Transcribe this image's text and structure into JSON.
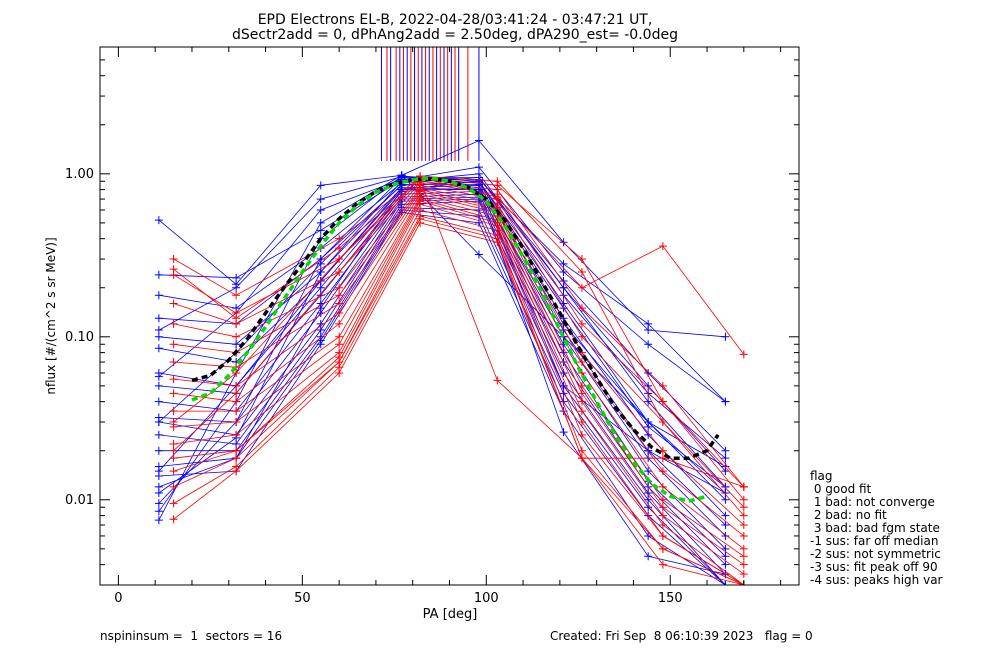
{
  "chart_data": {
    "type": "line",
    "title_line1": "EPD Electrons EL-B, 2022-04-28/03:41:24 - 03:47:21 UT,",
    "title_line2": "dSectr2add = 0, dPhAng2add = 2.50deg, dPA290_est=  -0.0deg",
    "xlabel": "PA [deg]",
    "ylabel": "nflux [#/(cm^2 s sr MeV)]",
    "xlim": [
      -5,
      185
    ],
    "ylim": [
      0.003,
      6.0
    ],
    "yscale": "log",
    "x_ticks": [
      "0",
      "50",
      "100",
      "150"
    ],
    "y_ticks": [
      "0.01",
      "0.10",
      "1.00"
    ],
    "colors": {
      "red": "#ff0000",
      "blue": "#0000ff",
      "green": "#00dd00",
      "black": "#000000"
    },
    "series": [
      {
        "color": "blue",
        "x": [
          11,
          32,
          55,
          77,
          98,
          121,
          144,
          165
        ],
        "y": [
          0.52,
          0.21,
          0.85,
          0.98,
          1.6,
          0.38,
          0.11,
          0.1
        ]
      },
      {
        "color": "blue",
        "x": [
          11,
          32,
          55,
          77,
          98,
          121,
          144,
          165
        ],
        "y": [
          0.24,
          0.23,
          0.45,
          0.92,
          1.1,
          0.25,
          0.09,
          0.04
        ]
      },
      {
        "color": "blue",
        "x": [
          11,
          32,
          55,
          77,
          98,
          121,
          144,
          165
        ],
        "y": [
          0.18,
          0.15,
          0.35,
          0.88,
          0.95,
          0.2,
          0.04,
          0.012
        ]
      },
      {
        "color": "blue",
        "x": [
          11,
          32,
          55,
          77,
          98,
          121,
          144,
          165
        ],
        "y": [
          0.13,
          0.12,
          0.3,
          0.85,
          0.9,
          0.16,
          0.03,
          0.01
        ]
      },
      {
        "color": "blue",
        "x": [
          11,
          32,
          55,
          77,
          98,
          121,
          144,
          165
        ],
        "y": [
          0.1,
          0.09,
          0.25,
          0.82,
          0.85,
          0.13,
          0.025,
          0.008
        ]
      },
      {
        "color": "blue",
        "x": [
          11,
          32,
          55,
          77,
          98,
          121,
          144,
          165
        ],
        "y": [
          0.085,
          0.07,
          0.22,
          0.8,
          0.8,
          0.11,
          0.02,
          0.007
        ]
      },
      {
        "color": "blue",
        "x": [
          11,
          32,
          55,
          77,
          98,
          121,
          144,
          165
        ],
        "y": [
          0.06,
          0.05,
          0.2,
          0.78,
          0.82,
          0.1,
          0.018,
          0.006
        ]
      },
      {
        "color": "blue",
        "x": [
          11,
          32,
          55,
          77,
          98,
          121,
          144,
          165
        ],
        "y": [
          0.05,
          0.045,
          0.18,
          0.75,
          0.78,
          0.09,
          0.015,
          0.005
        ]
      },
      {
        "color": "blue",
        "x": [
          11,
          32,
          55,
          77,
          98,
          121,
          144,
          165
        ],
        "y": [
          0.04,
          0.035,
          0.16,
          0.72,
          0.75,
          0.08,
          0.013,
          0.0045
        ]
      },
      {
        "color": "blue",
        "x": [
          11,
          32,
          55,
          77,
          98,
          121,
          144,
          165
        ],
        "y": [
          0.032,
          0.03,
          0.14,
          0.7,
          0.72,
          0.07,
          0.012,
          0.004
        ]
      },
      {
        "color": "blue",
        "x": [
          11,
          32,
          55,
          77,
          98,
          121,
          144,
          165
        ],
        "y": [
          0.03,
          0.025,
          0.12,
          0.68,
          0.7,
          0.06,
          0.011,
          0.0035
        ]
      },
      {
        "color": "blue",
        "x": [
          11,
          32,
          55,
          77,
          98,
          121,
          144,
          165
        ],
        "y": [
          0.025,
          0.022,
          0.11,
          0.65,
          0.68,
          0.05,
          0.01,
          0.003
        ]
      },
      {
        "color": "blue",
        "x": [
          11,
          32,
          55,
          77,
          98,
          121,
          144,
          165
        ],
        "y": [
          0.02,
          0.02,
          0.1,
          0.62,
          0.6,
          0.045,
          0.009,
          0.003
        ]
      },
      {
        "color": "blue",
        "x": [
          11,
          32,
          55,
          77,
          98,
          121,
          144,
          165
        ],
        "y": [
          0.016,
          0.018,
          0.095,
          0.6,
          0.55,
          0.04,
          0.008,
          0.003
        ]
      },
      {
        "color": "blue",
        "x": [
          11,
          32,
          55,
          77,
          98,
          121,
          144,
          165
        ],
        "y": [
          0.014,
          0.015,
          0.09,
          0.58,
          0.5,
          0.035,
          0.006,
          0.003
        ]
      },
      {
        "color": "blue",
        "x": [
          11,
          32,
          55,
          77,
          98,
          121,
          144,
          165
        ],
        "y": [
          0.012,
          0.018,
          0.15,
          0.8,
          0.9,
          0.12,
          0.03,
          0.011
        ]
      },
      {
        "color": "blue",
        "x": [
          11,
          32,
          55,
          77,
          98,
          121,
          144,
          165
        ],
        "y": [
          0.011,
          0.024,
          0.25,
          0.9,
          1.0,
          0.2,
          0.05,
          0.015
        ]
      },
      {
        "color": "blue",
        "x": [
          11,
          32,
          55,
          77,
          98,
          121,
          144,
          165
        ],
        "y": [
          0.0095,
          0.03,
          0.3,
          0.95,
          0.95,
          0.22,
          0.06,
          0.02
        ]
      },
      {
        "color": "blue",
        "x": [
          11,
          32,
          55,
          77,
          98,
          121,
          144,
          165
        ],
        "y": [
          0.0085,
          0.04,
          0.4,
          0.97,
          0.9,
          0.18,
          0.045,
          0.018
        ]
      },
      {
        "color": "blue",
        "x": [
          11,
          32,
          55,
          77,
          98,
          121,
          144,
          165
        ],
        "y": [
          0.0075,
          0.06,
          0.5,
          0.98,
          0.32,
          0.1,
          0.03,
          0.016
        ]
      },
      {
        "color": "blue",
        "x": [
          11,
          32,
          55,
          77,
          98,
          121,
          144,
          165
        ],
        "y": [
          0.057,
          0.14,
          0.6,
          0.93,
          0.88,
          0.15,
          0.028,
          0.012
        ]
      },
      {
        "color": "blue",
        "x": [
          11,
          32,
          55,
          77,
          98,
          121,
          144,
          165
        ],
        "y": [
          0.11,
          0.2,
          0.7,
          0.96,
          0.92,
          0.28,
          0.12,
          0.04
        ]
      },
      {
        "color": "blue",
        "x": [
          11,
          32,
          55,
          77,
          98,
          121,
          144,
          165
        ],
        "y": [
          0.03,
          0.08,
          0.28,
          0.86,
          0.86,
          0.05,
          0.02,
          0.011
        ]
      },
      {
        "color": "blue",
        "x": [
          11,
          32,
          55,
          77,
          98,
          121,
          144,
          165
        ],
        "y": [
          0.015,
          0.05,
          0.22,
          0.82,
          0.8,
          0.026,
          0.0045,
          0.0035
        ]
      },
      {
        "color": "red",
        "x": [
          15,
          32,
          60,
          82,
          103,
          126,
          148,
          170
        ],
        "y": [
          0.3,
          0.18,
          0.4,
          0.95,
          0.72,
          0.2,
          0.36,
          0.078
        ]
      },
      {
        "color": "red",
        "x": [
          15,
          32,
          60,
          82,
          103,
          126,
          148,
          170
        ],
        "y": [
          0.24,
          0.14,
          0.3,
          0.9,
          0.8,
          0.15,
          0.05,
          0.012
        ]
      },
      {
        "color": "red",
        "x": [
          15,
          32,
          60,
          82,
          103,
          126,
          148,
          170
        ],
        "y": [
          0.16,
          0.12,
          0.25,
          0.88,
          0.75,
          0.12,
          0.04,
          0.012
        ]
      },
      {
        "color": "red",
        "x": [
          15,
          32,
          60,
          82,
          103,
          126,
          148,
          170
        ],
        "y": [
          0.12,
          0.1,
          0.2,
          0.85,
          0.7,
          0.1,
          0.03,
          0.009
        ]
      },
      {
        "color": "red",
        "x": [
          15,
          32,
          60,
          82,
          103,
          126,
          148,
          170
        ],
        "y": [
          0.09,
          0.08,
          0.18,
          0.82,
          0.66,
          0.08,
          0.02,
          0.007
        ]
      },
      {
        "color": "red",
        "x": [
          15,
          32,
          60,
          82,
          103,
          126,
          148,
          170
        ],
        "y": [
          0.07,
          0.065,
          0.16,
          0.8,
          0.62,
          0.07,
          0.015,
          0.006
        ]
      },
      {
        "color": "red",
        "x": [
          15,
          32,
          60,
          82,
          103,
          126,
          148,
          170
        ],
        "y": [
          0.055,
          0.05,
          0.14,
          0.78,
          0.6,
          0.06,
          0.012,
          0.005
        ]
      },
      {
        "color": "red",
        "x": [
          15,
          32,
          60,
          82,
          103,
          126,
          148,
          170
        ],
        "y": [
          0.045,
          0.04,
          0.12,
          0.75,
          0.58,
          0.05,
          0.01,
          0.0045
        ]
      },
      {
        "color": "red",
        "x": [
          15,
          32,
          60,
          82,
          103,
          126,
          148,
          170
        ],
        "y": [
          0.035,
          0.035,
          0.1,
          0.72,
          0.55,
          0.045,
          0.009,
          0.004
        ]
      },
      {
        "color": "red",
        "x": [
          15,
          32,
          60,
          82,
          103,
          126,
          148,
          170
        ],
        "y": [
          0.028,
          0.03,
          0.09,
          0.7,
          0.52,
          0.04,
          0.008,
          0.0035
        ]
      },
      {
        "color": "red",
        "x": [
          15,
          32,
          60,
          82,
          103,
          126,
          148,
          170
        ],
        "y": [
          0.022,
          0.025,
          0.08,
          0.68,
          0.5,
          0.035,
          0.007,
          0.003
        ]
      },
      {
        "color": "red",
        "x": [
          15,
          32,
          60,
          82,
          103,
          126,
          148,
          170
        ],
        "y": [
          0.018,
          0.02,
          0.075,
          0.65,
          0.48,
          0.03,
          0.006,
          0.003
        ]
      },
      {
        "color": "red",
        "x": [
          15,
          32,
          60,
          82,
          103,
          126,
          148,
          170
        ],
        "y": [
          0.015,
          0.02,
          0.07,
          0.6,
          0.45,
          0.025,
          0.006,
          0.003
        ]
      },
      {
        "color": "red",
        "x": [
          15,
          32,
          60,
          82,
          103,
          126,
          148,
          170
        ],
        "y": [
          0.012,
          0.018,
          0.07,
          0.55,
          0.42,
          0.02,
          0.005,
          0.003
        ]
      },
      {
        "color": "red",
        "x": [
          15,
          32,
          60,
          82,
          103,
          126,
          148,
          170
        ],
        "y": [
          0.0095,
          0.016,
          0.065,
          0.53,
          0.4,
          0.018,
          0.005,
          0.003
        ]
      },
      {
        "color": "red",
        "x": [
          15,
          32,
          60,
          82,
          103,
          126,
          148,
          170
        ],
        "y": [
          0.0076,
          0.015,
          0.06,
          0.5,
          0.38,
          0.018,
          0.004,
          0.003
        ]
      },
      {
        "color": "red",
        "x": [
          15,
          32,
          60,
          82,
          103,
          126,
          148,
          170
        ],
        "y": [
          0.26,
          0.13,
          0.35,
          0.92,
          0.054,
          0.018,
          0.018,
          0.012
        ]
      },
      {
        "color": "red",
        "x": [
          15,
          32,
          60,
          82,
          103,
          126,
          148,
          170
        ],
        "y": [
          0.03,
          0.06,
          0.3,
          0.95,
          0.85,
          0.3,
          0.04,
          0.01
        ]
      },
      {
        "color": "red",
        "x": [
          15,
          32,
          60,
          82,
          103,
          126,
          148,
          170
        ],
        "y": [
          0.02,
          0.045,
          0.25,
          0.97,
          0.9,
          0.25,
          0.03,
          0.008
        ]
      }
    ],
    "vlines": {
      "x": [
        71.5,
        73,
        74,
        75.5,
        76.5,
        77.5,
        78.5,
        79.5,
        80.5,
        81.5,
        82.5,
        83.5,
        84.5,
        85.5,
        86.5,
        87.5,
        88.5,
        89.5,
        90.5,
        91.5,
        92.5,
        95,
        98
      ],
      "y_bottom": [
        1.2,
        1.2,
        1.2,
        1.2,
        1.2,
        1.2,
        1.2,
        1.2,
        1.2,
        1.2,
        1.2,
        1.2,
        1.2,
        1.2,
        1.2,
        1.2,
        1.2,
        1.2,
        1.2,
        1.2,
        1.2,
        1.2,
        1.2
      ],
      "colors": [
        "blue",
        "red",
        "blue",
        "red",
        "blue",
        "red",
        "blue",
        "red",
        "blue",
        "red",
        "blue",
        "red",
        "blue",
        "red",
        "blue",
        "red",
        "blue",
        "red",
        "blue",
        "red",
        "blue",
        "red",
        "blue"
      ]
    },
    "fit_green": {
      "x": [
        20,
        25,
        30,
        35,
        40,
        45,
        50,
        55,
        60,
        65,
        70,
        75,
        80,
        85,
        90,
        95,
        100,
        105,
        110,
        115,
        120,
        125,
        130,
        135,
        140,
        145,
        150,
        155,
        160
      ],
      "y": [
        0.041,
        0.045,
        0.058,
        0.08,
        0.115,
        0.17,
        0.25,
        0.36,
        0.5,
        0.64,
        0.77,
        0.86,
        0.92,
        0.94,
        0.9,
        0.82,
        0.68,
        0.48,
        0.31,
        0.19,
        0.11,
        0.065,
        0.04,
        0.025,
        0.017,
        0.0125,
        0.0105,
        0.0098,
        0.0105
      ]
    },
    "fit_black": {
      "x": [
        20,
        25,
        30,
        35,
        40,
        45,
        50,
        55,
        60,
        65,
        70,
        75,
        80,
        85,
        90,
        95,
        100,
        105,
        110,
        115,
        120,
        125,
        130,
        135,
        140,
        145,
        150,
        155,
        160,
        163
      ],
      "y": [
        0.054,
        0.058,
        0.072,
        0.097,
        0.14,
        0.2,
        0.28,
        0.4,
        0.53,
        0.66,
        0.78,
        0.87,
        0.92,
        0.93,
        0.9,
        0.83,
        0.7,
        0.52,
        0.35,
        0.22,
        0.14,
        0.087,
        0.056,
        0.037,
        0.027,
        0.021,
        0.018,
        0.018,
        0.02,
        0.025
      ]
    }
  },
  "legend": {
    "heading": "flag",
    "items": [
      " 0 good fit",
      " 1 bad: not converge",
      " 2 bad: no fit",
      " 3 bad: bad fgm state",
      "-1 sus: far off median",
      "-2 sus: not symmetric",
      "-3 sus: fit peak off 90",
      "-4 sus: peaks high var"
    ]
  },
  "footer": {
    "left": "nspininsum =  1  sectors = 16",
    "right": "Created: Fri Sep  8 06:10:39 2023   flag = 0"
  }
}
